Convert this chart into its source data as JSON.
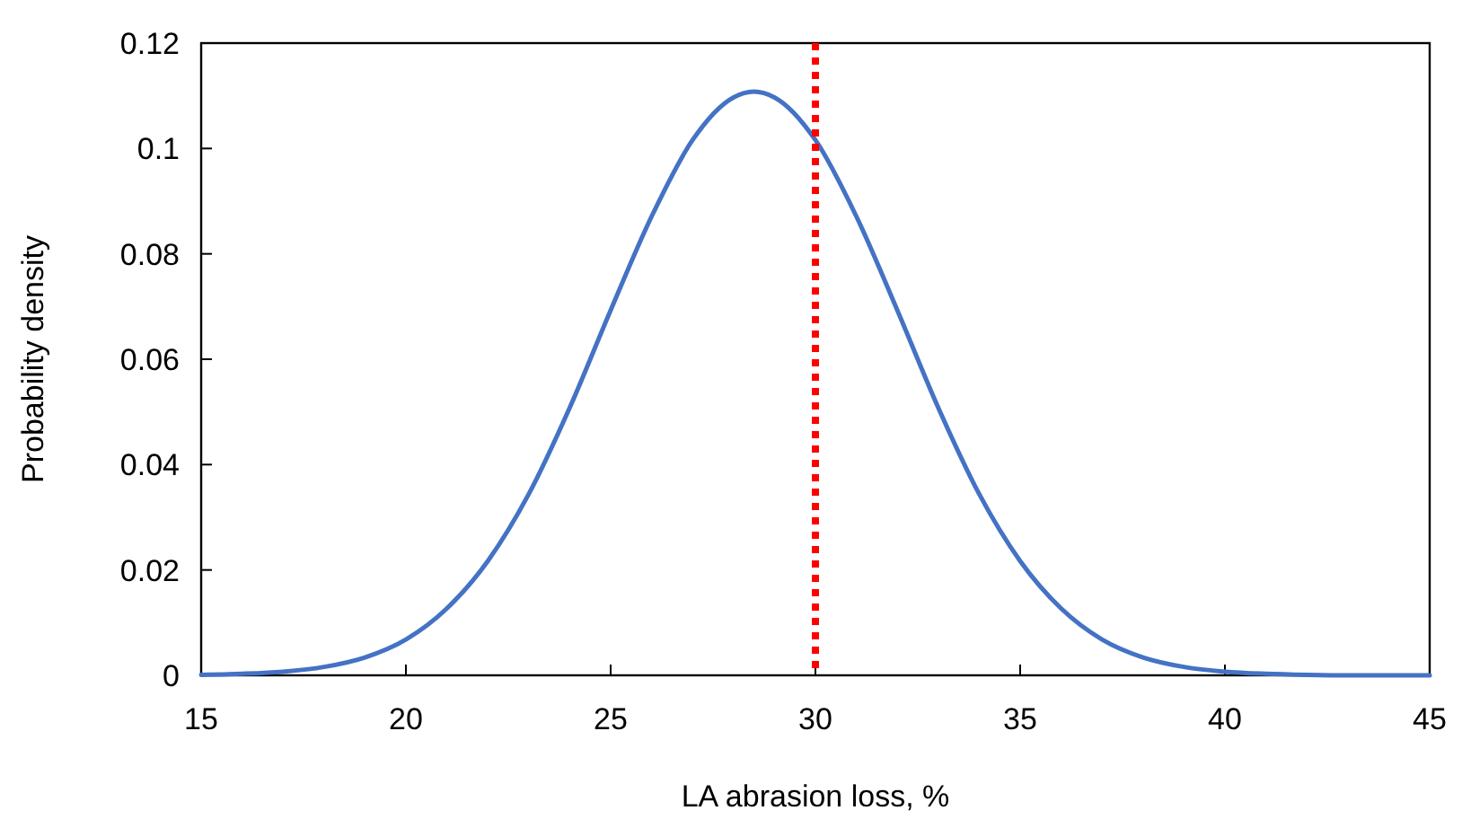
{
  "chart_data": {
    "type": "line",
    "xlabel": "LA abrasion loss, %",
    "ylabel": "Probability density",
    "xlim": [
      15,
      45
    ],
    "xticks": [
      15,
      20,
      25,
      30,
      35,
      40,
      45
    ],
    "ylim": [
      0,
      0.12
    ],
    "yticks": [
      0,
      0.02,
      0.04,
      0.06,
      0.08,
      {
        "value": 0.1,
        "label": "0.1"
      },
      0.12
    ],
    "grid": false,
    "marker": "none",
    "line_style": "solid",
    "series": [
      {
        "color": "#4472c4",
        "x": [
          15,
          16,
          17,
          18,
          19,
          20,
          21,
          22,
          23,
          24,
          25,
          26,
          27,
          28,
          28.5,
          29,
          30,
          31,
          32,
          33,
          34,
          35,
          36,
          37,
          38,
          39,
          40,
          41,
          42,
          43,
          44,
          45
        ],
        "values": [
          0.0001,
          0.0003,
          0.0007,
          0.0016,
          0.0034,
          0.0068,
          0.0127,
          0.0217,
          0.0344,
          0.0508,
          0.0693,
          0.0871,
          0.1016,
          0.1097,
          0.1108,
          0.1097,
          0.1016,
          0.0871,
          0.0693,
          0.0508,
          0.0344,
          0.0217,
          0.0127,
          0.0068,
          0.0034,
          0.0016,
          0.0007,
          0.0003,
          0.0001,
          0,
          0,
          0
        ]
      }
    ],
    "ref_lines": [
      {
        "axis": "x",
        "value": 30,
        "color": "#ff0000",
        "line_style": "dotted"
      }
    ]
  }
}
